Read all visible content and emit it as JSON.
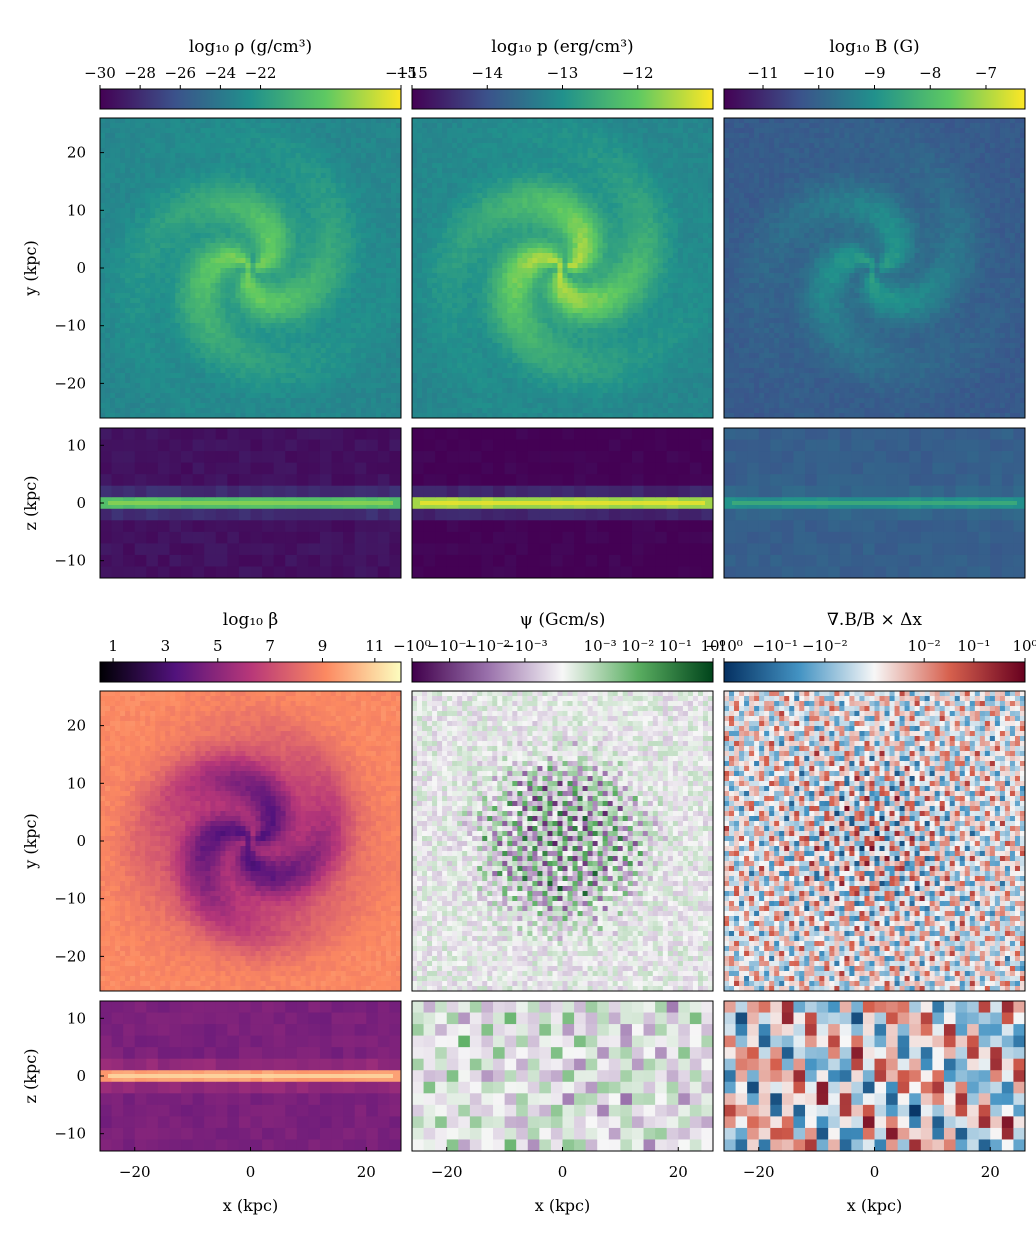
{
  "colormaps": {
    "viridis": [
      "#440154",
      "#3b528b",
      "#21918c",
      "#5ec962",
      "#fde725"
    ],
    "magma": [
      "#000004",
      "#51127c",
      "#b73779",
      "#fc8961",
      "#fcfdbf"
    ],
    "prgn": [
      "#40004b",
      "#9970ab",
      "#f7f7f7",
      "#5aae61",
      "#00441b"
    ],
    "rdbu_r": [
      "#053061",
      "#4393c3",
      "#f7f7f7",
      "#d6604d",
      "#67001f"
    ]
  },
  "chart_data": [
    {
      "type": "heatmap",
      "title": "log₁₀ ρ (g/cm³)",
      "colormap": "viridis",
      "colorbar_range": [
        -30,
        -15
      ],
      "colorbar_ticks": [
        "−30",
        "−28",
        "−26",
        "−24",
        "−22",
        "−15"
      ],
      "colorbar_tick_values": [
        -30,
        -28,
        -26,
        -24,
        -22,
        -15
      ],
      "panels": [
        {
          "view": "face-on",
          "xlim": [
            -26,
            26
          ],
          "ylim": [
            -26,
            26
          ],
          "ylabel": "y (kpc)",
          "y_ticks": [
            20,
            10,
            0,
            -10,
            -20
          ],
          "tick_labels": [
            "20",
            "10",
            "0",
            "−10",
            "−20"
          ],
          "field": "spiral",
          "bg_level": 0.45,
          "peak_level": 0.8
        },
        {
          "view": "edge-on",
          "xlim": [
            -26,
            26
          ],
          "ylim": [
            -13,
            13
          ],
          "ylabel": "z (kpc)",
          "y_ticks": [
            10,
            0,
            -10
          ],
          "tick_labels": [
            "10",
            "0",
            "−10"
          ],
          "field": "disk",
          "bg_level": 0.05,
          "peak_level": 0.7
        }
      ]
    },
    {
      "type": "heatmap",
      "title": "log₁₀ p (erg/cm³)",
      "colormap": "viridis",
      "colorbar_range": [
        -15,
        -11
      ],
      "colorbar_ticks": [
        "−15",
        "−14",
        "−13",
        "−12"
      ],
      "colorbar_tick_values": [
        -15,
        -14,
        -13,
        -12
      ],
      "panels": [
        {
          "view": "face-on",
          "xlim": [
            -26,
            26
          ],
          "ylim": [
            -26,
            26
          ],
          "field": "spiral",
          "bg_level": 0.45,
          "peak_level": 0.9
        },
        {
          "view": "edge-on",
          "xlim": [
            -26,
            26
          ],
          "ylim": [
            -13,
            13
          ],
          "field": "disk",
          "bg_level": 0.0,
          "peak_level": 0.85
        }
      ]
    },
    {
      "type": "heatmap",
      "title": "log₁₀ B (G)",
      "colormap": "viridis",
      "colorbar_range": [
        -11.7,
        -6.3
      ],
      "colorbar_ticks": [
        "−11",
        "−10",
        "−9",
        "−8",
        "−7"
      ],
      "colorbar_tick_values": [
        -11,
        -10,
        -9,
        -8,
        -7
      ],
      "panels": [
        {
          "view": "face-on",
          "xlim": [
            -26,
            26
          ],
          "ylim": [
            -26,
            26
          ],
          "field": "spiral",
          "bg_level": 0.28,
          "peak_level": 0.55
        },
        {
          "view": "edge-on",
          "xlim": [
            -26,
            26
          ],
          "ylim": [
            -13,
            13
          ],
          "field": "disk",
          "bg_level": 0.3,
          "peak_level": 0.5
        }
      ]
    },
    {
      "type": "heatmap",
      "title": "log₁₀ β",
      "colormap": "magma",
      "colorbar_range": [
        0.5,
        12
      ],
      "colorbar_ticks": [
        "1",
        "3",
        "5",
        "7",
        "9",
        "11"
      ],
      "colorbar_tick_values": [
        1,
        3,
        5,
        7,
        9,
        11
      ],
      "panels": [
        {
          "view": "face-on",
          "xlim": [
            -26,
            26
          ],
          "ylim": [
            -26,
            26
          ],
          "ylabel": "y (kpc)",
          "y_ticks": [
            20,
            10,
            0,
            -10,
            -20
          ],
          "tick_labels": [
            "20",
            "10",
            "0",
            "−10",
            "−20"
          ],
          "field": "spiral-inverse",
          "bg_level": 0.75,
          "peak_level": 0.25
        },
        {
          "view": "edge-on",
          "xlim": [
            -26,
            26
          ],
          "ylim": [
            -13,
            13
          ],
          "ylabel": "z (kpc)",
          "y_ticks": [
            10,
            0,
            -10
          ],
          "tick_labels": [
            "10",
            "0",
            "−10"
          ],
          "xlabel": "x (kpc)",
          "x_ticks": [
            -20,
            0,
            20
          ],
          "x_tick_labels": [
            "−20",
            "0",
            "20"
          ],
          "field": "disk",
          "bg_level": 0.35,
          "peak_level": 0.8
        }
      ]
    },
    {
      "type": "heatmap",
      "title": "ψ (Gcm/s)",
      "colormap": "prgn",
      "colorbar_range": [
        -1,
        1
      ],
      "colorbar_ticks": [
        "−10⁰",
        "−10⁻¹",
        "−10⁻²",
        "−10⁻³",
        "10⁻³",
        "10⁻²",
        "10⁻¹",
        "10⁰"
      ],
      "colorbar_tick_values": [
        -1.0,
        -0.75,
        -0.5,
        -0.25,
        0.25,
        0.5,
        0.75,
        1.0
      ],
      "panels": [
        {
          "view": "face-on",
          "xlim": [
            -26,
            26
          ],
          "ylim": [
            -26,
            26
          ],
          "field": "signed-disk",
          "bg_level": 0.5,
          "peak_level": 0.5
        },
        {
          "view": "edge-on",
          "xlim": [
            -26,
            26
          ],
          "ylim": [
            -13,
            13
          ],
          "xlabel": "x (kpc)",
          "x_ticks": [
            -20,
            0,
            20
          ],
          "x_tick_labels": [
            "−20",
            "0",
            "20"
          ],
          "field": "signed-blocks",
          "bg_level": 0.5,
          "peak_level": 0.5
        }
      ]
    },
    {
      "type": "heatmap",
      "title": "∇.B/B × Δx",
      "colormap": "rdbu_r",
      "colorbar_range": [
        -1,
        1
      ],
      "colorbar_ticks": [
        "−10⁰",
        "−10⁻¹",
        "−10⁻²",
        "10⁻²",
        "10⁻¹",
        "10⁰"
      ],
      "colorbar_tick_values": [
        -1.0,
        -0.66,
        -0.33,
        0.33,
        0.66,
        1.0
      ],
      "panels": [
        {
          "view": "face-on",
          "xlim": [
            -26,
            26
          ],
          "ylim": [
            -26,
            26
          ],
          "field": "signed-full",
          "bg_level": 0.5,
          "peak_level": 0.5
        },
        {
          "view": "edge-on",
          "xlim": [
            -26,
            26
          ],
          "ylim": [
            -13,
            13
          ],
          "xlabel": "x (kpc)",
          "x_ticks": [
            -20,
            0,
            20
          ],
          "x_tick_labels": [
            "−20",
            "0",
            "20"
          ],
          "field": "signed-blocks-strong",
          "bg_level": 0.5,
          "peak_level": 0.5
        }
      ]
    }
  ]
}
